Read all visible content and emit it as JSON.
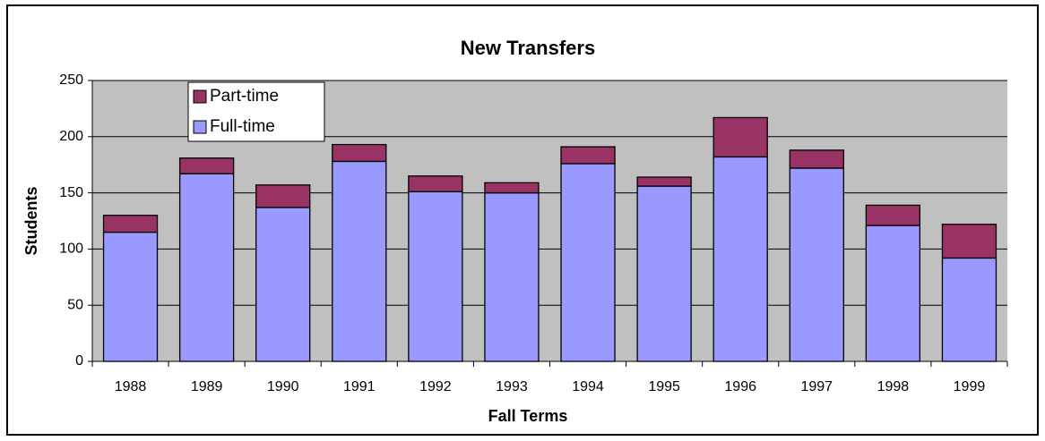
{
  "chart_data": {
    "type": "stacked_bar",
    "title": "New Transfers",
    "x_label": "Fall Terms",
    "y_label": "Students",
    "categories": [
      "1988",
      "1989",
      "1990",
      "1991",
      "1992",
      "1993",
      "1994",
      "1995",
      "1996",
      "1997",
      "1998",
      "1999"
    ],
    "series": [
      {
        "name": "Full-time",
        "color": "#9999ff",
        "values": [
          115,
          167,
          137,
          178,
          151,
          150,
          176,
          156,
          182,
          172,
          121,
          92
        ]
      },
      {
        "name": "Part-time",
        "color": "#993366",
        "values": [
          15,
          14,
          20,
          15,
          14,
          9,
          15,
          8,
          35,
          16,
          18,
          30
        ]
      }
    ],
    "ylim": [
      0,
      250
    ],
    "yticks": [
      0,
      50,
      100,
      150,
      200,
      250
    ],
    "grid": true
  }
}
